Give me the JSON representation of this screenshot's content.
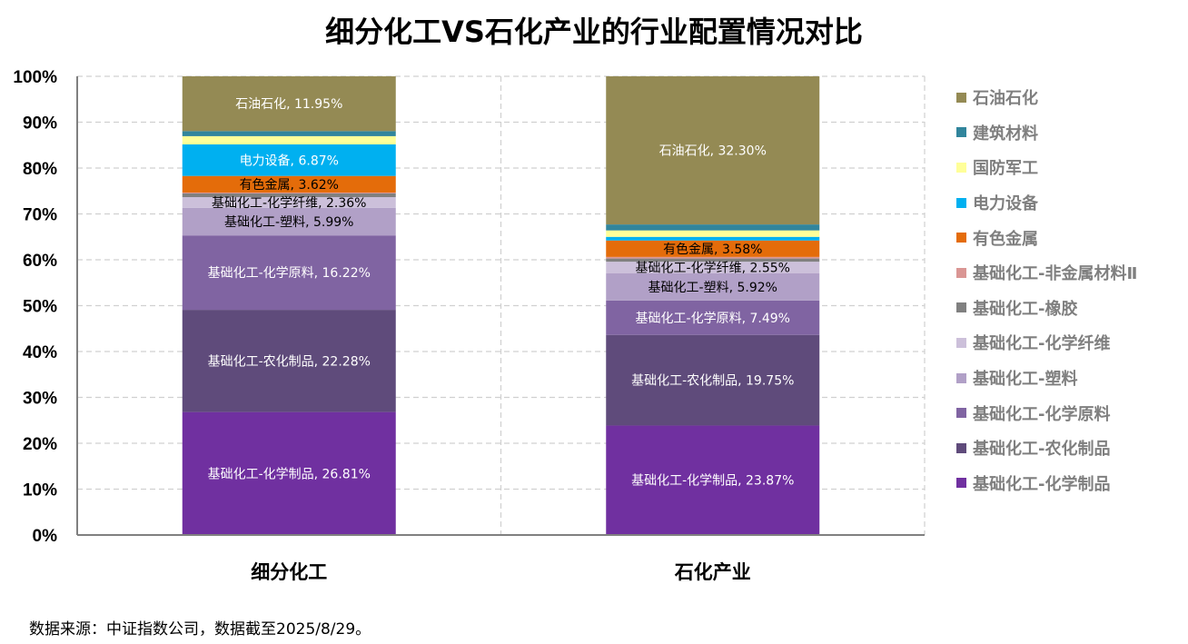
{
  "chart_data": {
    "type": "bar",
    "stacked": true,
    "title": "细分化工VS石化产业的行业配置情况对比",
    "xlabel": "",
    "ylabel": "",
    "ylim": [
      0,
      100
    ],
    "y_ticks": [
      "0%",
      "10%",
      "20%",
      "30%",
      "40%",
      "50%",
      "60%",
      "70%",
      "80%",
      "90%",
      "100%"
    ],
    "grid": "horizontal dashed",
    "legend_position": "right",
    "categories": [
      "细分化工",
      "石化产业"
    ],
    "series": [
      {
        "name": "基础化工-化学制品",
        "color": "#7030a0",
        "label_color": "#ffffff",
        "values": [
          26.81,
          23.87
        ],
        "labels": [
          "基础化工-化学制品, 26.81%",
          "基础化工-化学制品, 23.87%"
        ]
      },
      {
        "name": "基础化工-农化制品",
        "color": "#5f4b7b",
        "label_color": "#ffffff",
        "values": [
          22.28,
          19.75
        ],
        "labels": [
          "基础化工-农化制品, 22.28%",
          "基础化工-农化制品, 19.75%"
        ]
      },
      {
        "name": "基础化工-化学原料",
        "color": "#8064a2",
        "label_color": "#ffffff",
        "values": [
          16.22,
          7.49
        ],
        "labels": [
          "基础化工-化学原料, 16.22%",
          "基础化工-化学原料, 7.49%"
        ]
      },
      {
        "name": "基础化工-塑料",
        "color": "#b1a0c7",
        "label_color": "#000000",
        "values": [
          5.99,
          5.92
        ],
        "labels": [
          "基础化工-塑料, 5.99%",
          "基础化工-塑料, 5.92%"
        ]
      },
      {
        "name": "基础化工-化学纤维",
        "color": "#ccc0da",
        "label_color": "#000000",
        "values": [
          2.36,
          2.55
        ],
        "labels": [
          "基础化工-化学纤维, 2.36%",
          "基础化工-化学纤维, 2.55%"
        ]
      },
      {
        "name": "基础化工-橡胶",
        "color": "#808080",
        "label_color": "#000000",
        "values": [
          0.8,
          0.7
        ],
        "labels": [
          "",
          ""
        ]
      },
      {
        "name": "基础化工-非金属材料Ⅱ",
        "color": "#da9694",
        "label_color": "#000000",
        "values": [
          0.2,
          0.34
        ],
        "labels": [
          "",
          ""
        ]
      },
      {
        "name": "有色金属",
        "color": "#e46c0a",
        "label_color": "#000000",
        "values": [
          3.62,
          3.58
        ],
        "labels": [
          "有色金属, 3.62%",
          "有色金属, 3.58%"
        ]
      },
      {
        "name": "电力设备",
        "color": "#00b0f0",
        "label_color": "#ffffff",
        "values": [
          6.87,
          0.8
        ],
        "labels": [
          "电力设备, 6.87%",
          ""
        ]
      },
      {
        "name": "国防军工",
        "color": "#ffff99",
        "label_color": "#000000",
        "values": [
          1.8,
          1.4
        ],
        "labels": [
          "",
          ""
        ]
      },
      {
        "name": "建筑材料",
        "color": "#31859c",
        "label_color": "#ffffff",
        "values": [
          1.1,
          1.3
        ],
        "labels": [
          "",
          ""
        ]
      },
      {
        "name": "石油石化",
        "color": "#948a54",
        "label_color": "#ffffff",
        "values": [
          11.95,
          32.3
        ],
        "labels": [
          "石油石化, 11.95%",
          "石油石化, 32.30%"
        ]
      }
    ],
    "legend_order": [
      "石油石化",
      "建筑材料",
      "国防军工",
      "电力设备",
      "有色金属",
      "基础化工-非金属材料Ⅱ",
      "基础化工-橡胶",
      "基础化工-化学纤维",
      "基础化工-塑料",
      "基础化工-化学原料",
      "基础化工-农化制品",
      "基础化工-化学制品"
    ]
  },
  "footer": {
    "source": "数据来源：中证指数公司，数据截至2025/8/29。"
  }
}
